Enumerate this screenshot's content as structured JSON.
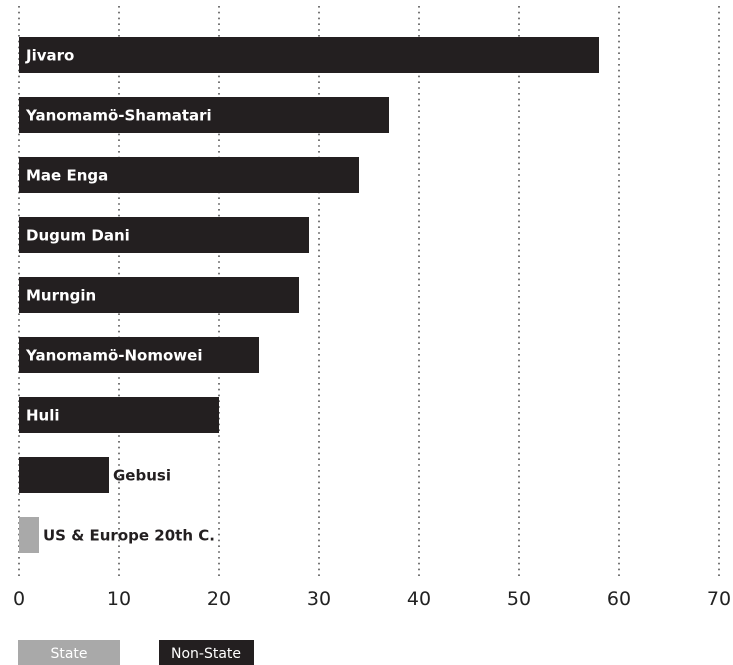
{
  "chart_data": {
    "type": "bar",
    "orientation": "horizontal",
    "title": "",
    "xlabel": "",
    "ylabel": "",
    "xlim": [
      0,
      70
    ],
    "x_ticks": [
      0,
      10,
      20,
      30,
      40,
      50,
      60,
      70
    ],
    "grid": "vertical dotted",
    "categories": [
      "Jivaro",
      "Yanomamö-Shamatari",
      "Mae Enga",
      "Dugum Dani",
      "Murngin",
      "Yanomamö-Nomowei",
      "Huli",
      "Gebusi",
      "US & Europe 20th C."
    ],
    "values": [
      58,
      37,
      34,
      29,
      28,
      24,
      20,
      9,
      2
    ],
    "groups": [
      "Non-State",
      "Non-State",
      "Non-State",
      "Non-State",
      "Non-State",
      "Non-State",
      "Non-State",
      "Non-State",
      "State"
    ],
    "legend": {
      "placement": "bottom-left",
      "items": [
        {
          "label": "State",
          "color": "#a9a9a9"
        },
        {
          "label": "Non-State",
          "color": "#231f20"
        }
      ]
    },
    "colors": {
      "State": "#a9a9a9",
      "Non-State": "#231f20",
      "grid": "#555555"
    }
  }
}
